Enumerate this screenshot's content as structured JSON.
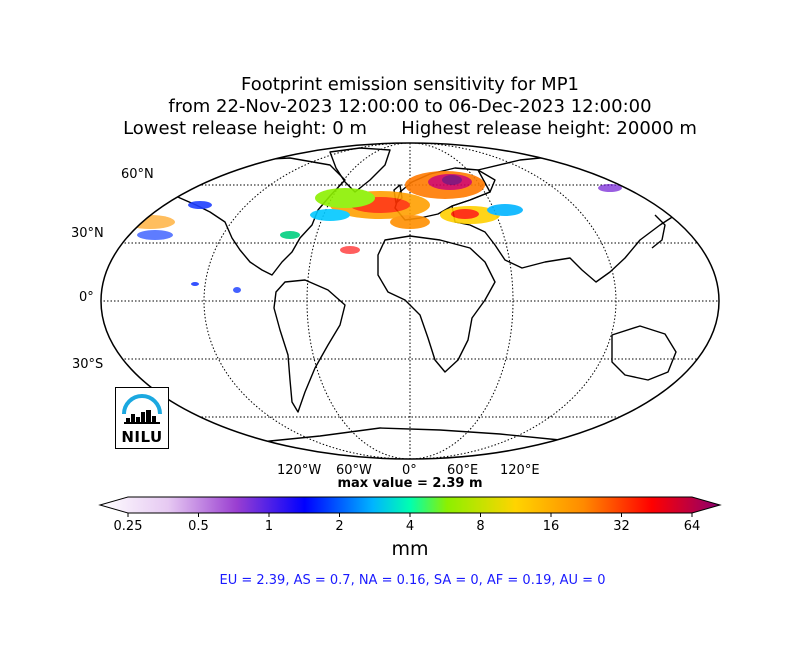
{
  "title": {
    "line1": "Footprint emission sensitivity for MP1",
    "line2": "from 22-Nov-2023 12:00:00 to 06-Dec-2023 12:00:00",
    "line3": "Lowest release height: 0 m      Highest release height: 20000 m"
  },
  "map": {
    "projection": "Robinson",
    "lat_labels": [
      "60°N",
      "30°N",
      "0°",
      "30°S"
    ],
    "lon_labels": [
      "120°W",
      "60°W",
      "0°",
      "60°E",
      "120°E"
    ],
    "sensitivity_regions": [
      "North Atlantic",
      "Europe",
      "North Pacific",
      "Mediterranean"
    ]
  },
  "max_value": "max value = 2.39 m",
  "colorbar": {
    "ticks": [
      "0.25",
      "0.5",
      "1",
      "2",
      "4",
      "8",
      "16",
      "32",
      "64"
    ],
    "unit": "mm",
    "colors": [
      "#ffffff",
      "#d3a8e8",
      "#9a3fd1",
      "#0000ff",
      "#00b4ff",
      "#00ff9c",
      "#8cf000",
      "#ffd400",
      "#ff8a00",
      "#ff0000",
      "#8b0070"
    ]
  },
  "totals": "EU = 2.39,  AS = 0.7,  NA = 0.16,  SA = 0,  AF = 0.19,  AU = 0",
  "logo": {
    "text": "NILU"
  }
}
